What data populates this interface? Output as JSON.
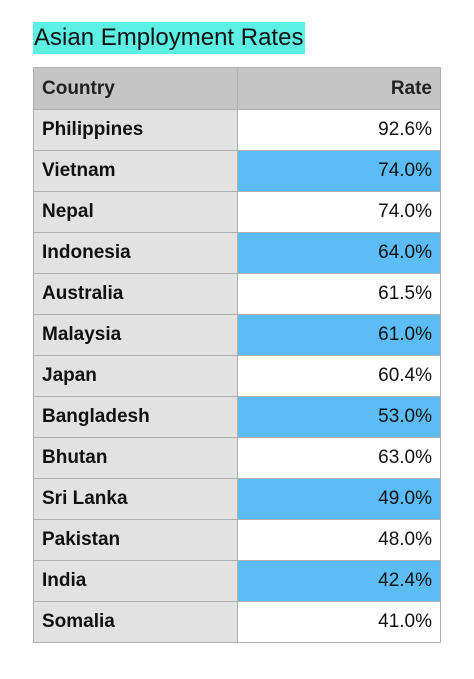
{
  "title": "Asian Employment Rates",
  "columns": [
    "Country",
    "Rate"
  ],
  "rows": [
    {
      "country": "Philippines",
      "rate": "92.6%",
      "highlighted": false
    },
    {
      "country": "Vietnam",
      "rate": "74.0%",
      "highlighted": true
    },
    {
      "country": "Nepal",
      "rate": "74.0%",
      "highlighted": false
    },
    {
      "country": "Indonesia",
      "rate": "64.0%",
      "highlighted": true
    },
    {
      "country": "Australia",
      "rate": "61.5%",
      "highlighted": false
    },
    {
      "country": "Malaysia",
      "rate": "61.0%",
      "highlighted": true
    },
    {
      "country": "Japan",
      "rate": "60.4%",
      "highlighted": false
    },
    {
      "country": "Bangladesh",
      "rate": "53.0%",
      "highlighted": true
    },
    {
      "country": "Bhutan",
      "rate": "63.0%",
      "highlighted": false
    },
    {
      "country": "Sri Lanka",
      "rate": "49.0%",
      "highlighted": true
    },
    {
      "country": "Pakistan",
      "rate": "48.0%",
      "highlighted": false
    },
    {
      "country": "India",
      "rate": "42.4%",
      "highlighted": true
    },
    {
      "country": "Somalia",
      "rate": "41.0%",
      "highlighted": false
    }
  ],
  "colors": {
    "title_highlight": "#5cf0e4",
    "header_bg": "#c5c5c5",
    "country_cell_bg": "#e2e2e2",
    "rate_highlight": "#5bbcf6"
  }
}
